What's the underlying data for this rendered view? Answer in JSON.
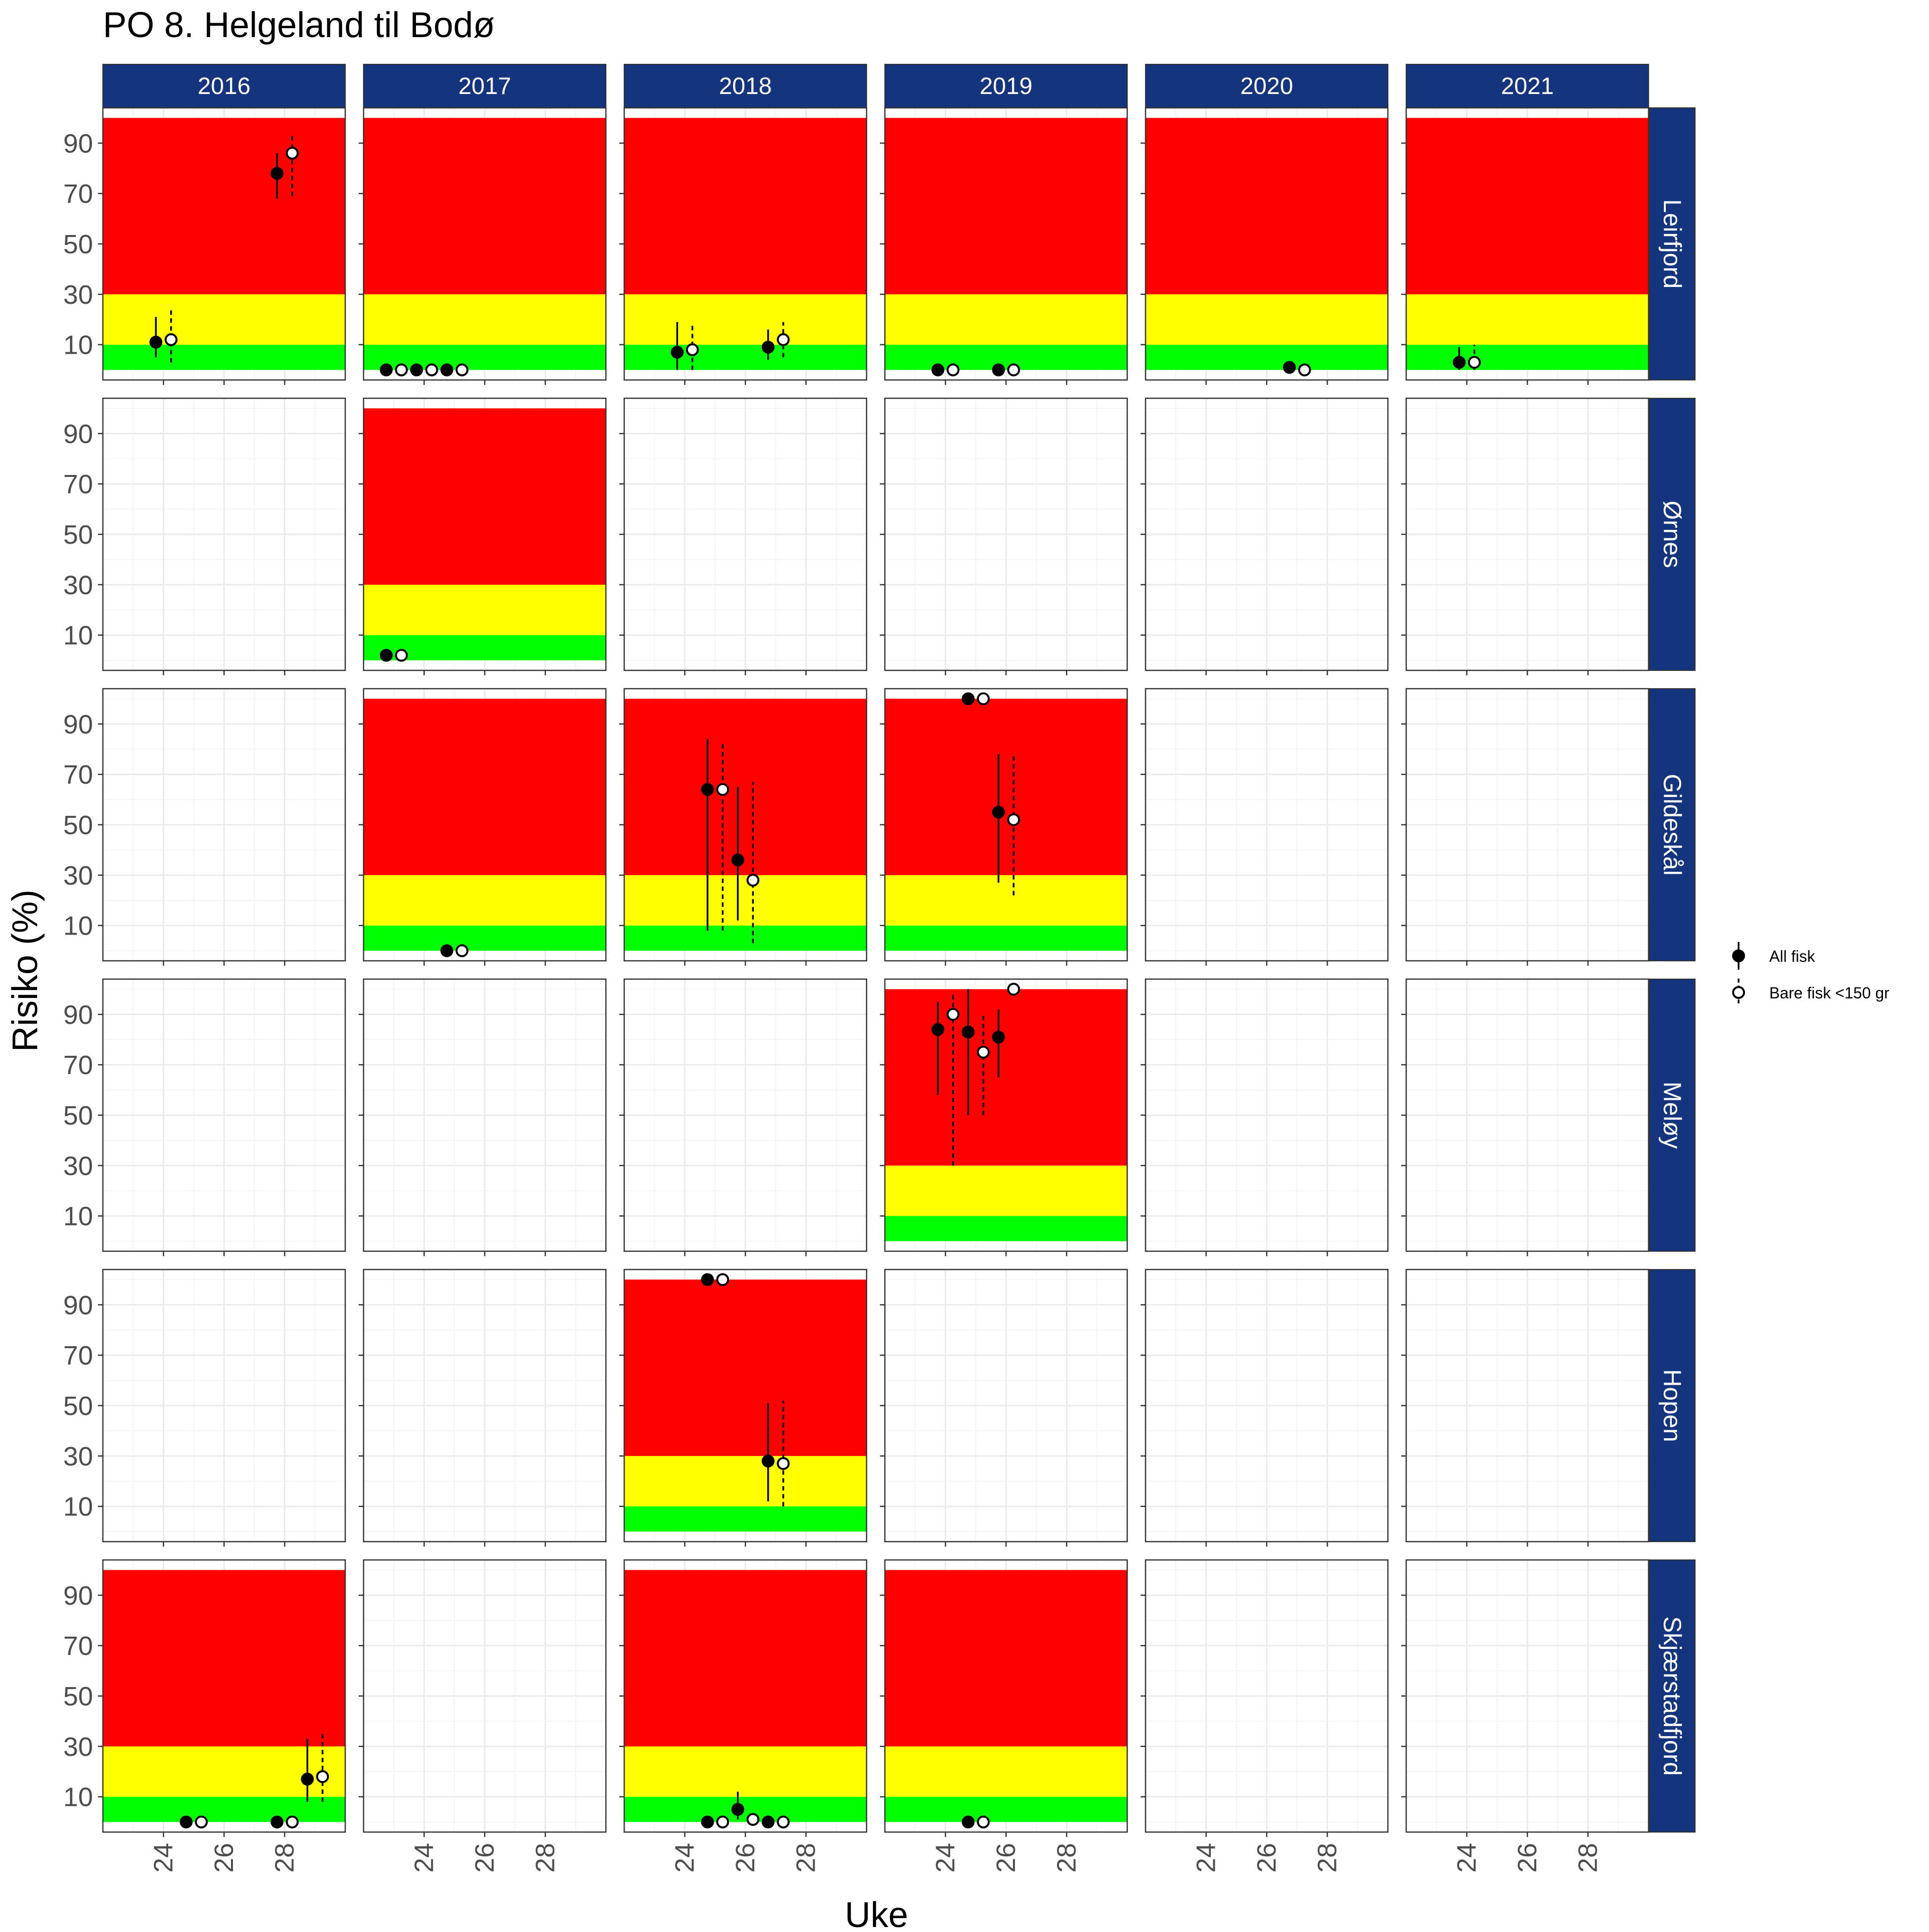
{
  "chart_data": {
    "type": "scatter",
    "title": "PO 8. Helgeland til Bodø",
    "xlabel": "Uke",
    "ylabel": "Risiko (%)",
    "years": [
      "2016",
      "2017",
      "2018",
      "2019",
      "2020",
      "2021"
    ],
    "locations": [
      "Leirfjord",
      "Ørnes",
      "Gildeskål",
      "Meløy",
      "Hopen",
      "Skjærstadfjord"
    ],
    "xlim": [
      22,
      30
    ],
    "ylim": [
      -4,
      104
    ],
    "x_ticks": [
      24,
      26,
      28
    ],
    "y_ticks": [
      10,
      30,
      50,
      70,
      90
    ],
    "risk_bands": [
      {
        "name": "low",
        "from": 0,
        "to": 10,
        "color": "#00FF00"
      },
      {
        "name": "moderate",
        "from": 10,
        "to": 30,
        "color": "#FFFF00"
      },
      {
        "name": "high",
        "from": 30,
        "to": 100,
        "color": "#FF0000"
      }
    ],
    "legend": [
      {
        "label": "All fisk",
        "marker": "filled-circle",
        "line": "solid"
      },
      {
        "label": "Bare fisk <150 gr",
        "marker": "open-circle",
        "line": "dashed"
      }
    ],
    "legend_position": "right",
    "colors": {
      "strip": "#14347D",
      "strip_text": "#FFFFFF",
      "grid": "#EBEBEB",
      "border": "#333333"
    },
    "panels": [
      {
        "year": "2016",
        "location": "Leirfjord",
        "bands": true,
        "points": [
          {
            "series": "all",
            "week": 23.75,
            "value": 11,
            "low": 5,
            "high": 21
          },
          {
            "series": "small",
            "week": 24.25,
            "value": 12,
            "low": 3,
            "high": 24
          },
          {
            "series": "all",
            "week": 27.75,
            "value": 78,
            "low": 68,
            "high": 86
          },
          {
            "series": "small",
            "week": 28.25,
            "value": 86,
            "low": 69,
            "high": 94
          }
        ]
      },
      {
        "year": "2017",
        "location": "Leirfjord",
        "bands": true,
        "points": [
          {
            "series": "all",
            "week": 22.75,
            "value": 0
          },
          {
            "series": "small",
            "week": 23.25,
            "value": 0
          },
          {
            "series": "all",
            "week": 23.75,
            "value": 0
          },
          {
            "series": "small",
            "week": 24.25,
            "value": 0
          },
          {
            "series": "all",
            "week": 24.75,
            "value": 0
          },
          {
            "series": "small",
            "week": 25.25,
            "value": 0
          }
        ]
      },
      {
        "year": "2018",
        "location": "Leirfjord",
        "bands": true,
        "points": [
          {
            "series": "all",
            "week": 23.75,
            "value": 7,
            "low": 0,
            "high": 19
          },
          {
            "series": "small",
            "week": 24.25,
            "value": 8,
            "low": 0,
            "high": 18
          },
          {
            "series": "all",
            "week": 26.75,
            "value": 9,
            "low": 4,
            "high": 16
          },
          {
            "series": "small",
            "week": 27.25,
            "value": 12,
            "low": 5,
            "high": 19
          }
        ]
      },
      {
        "year": "2019",
        "location": "Leirfjord",
        "bands": true,
        "points": [
          {
            "series": "all",
            "week": 23.75,
            "value": 0
          },
          {
            "series": "small",
            "week": 24.25,
            "value": 0
          },
          {
            "series": "all",
            "week": 25.75,
            "value": 0
          },
          {
            "series": "small",
            "week": 26.25,
            "value": 0
          }
        ]
      },
      {
        "year": "2020",
        "location": "Leirfjord",
        "bands": true,
        "points": [
          {
            "series": "all",
            "week": 26.75,
            "value": 1
          },
          {
            "series": "small",
            "week": 27.25,
            "value": 0
          }
        ]
      },
      {
        "year": "2021",
        "location": "Leirfjord",
        "bands": true,
        "points": [
          {
            "series": "all",
            "week": 23.75,
            "value": 3,
            "low": 0,
            "high": 9
          },
          {
            "series": "small",
            "week": 24.25,
            "value": 3,
            "low": 0,
            "high": 10
          }
        ]
      },
      {
        "year": "2017",
        "location": "Ørnes",
        "bands": true,
        "points": [
          {
            "series": "all",
            "week": 22.75,
            "value": 2
          },
          {
            "series": "small",
            "week": 23.25,
            "value": 2,
            "low": 0,
            "high": 4
          }
        ]
      },
      {
        "year": "2017",
        "location": "Gildeskål",
        "bands": true,
        "points": [
          {
            "series": "all",
            "week": 24.75,
            "value": 0
          },
          {
            "series": "small",
            "week": 25.25,
            "value": 0
          }
        ]
      },
      {
        "year": "2018",
        "location": "Gildeskål",
        "bands": true,
        "points": [
          {
            "series": "all",
            "week": 24.75,
            "value": 64,
            "low": 8,
            "high": 84
          },
          {
            "series": "small",
            "week": 25.25,
            "value": 64,
            "low": 8,
            "high": 83
          },
          {
            "series": "all",
            "week": 25.75,
            "value": 36,
            "low": 12,
            "high": 65
          },
          {
            "series": "small",
            "week": 26.25,
            "value": 28,
            "low": 3,
            "high": 67
          }
        ]
      },
      {
        "year": "2019",
        "location": "Gildeskål",
        "bands": true,
        "points": [
          {
            "series": "all",
            "week": 24.75,
            "value": 100
          },
          {
            "series": "small",
            "week": 25.25,
            "value": 100
          },
          {
            "series": "all",
            "week": 25.75,
            "value": 55,
            "low": 27,
            "high": 78
          },
          {
            "series": "small",
            "week": 26.25,
            "value": 52,
            "low": 22,
            "high": 78
          }
        ]
      },
      {
        "year": "2019",
        "location": "Meløy",
        "bands": true,
        "points": [
          {
            "series": "all",
            "week": 23.75,
            "value": 84,
            "low": 58,
            "high": 95
          },
          {
            "series": "small",
            "week": 24.25,
            "value": 90,
            "low": 30,
            "high": 99
          },
          {
            "series": "all",
            "week": 24.75,
            "value": 83,
            "low": 50,
            "high": 100
          },
          {
            "series": "small",
            "week": 25.25,
            "value": 75,
            "low": 50,
            "high": 90
          },
          {
            "series": "all",
            "week": 25.75,
            "value": 81,
            "low": 65,
            "high": 92
          },
          {
            "series": "small",
            "week": 26.25,
            "value": 100
          }
        ]
      },
      {
        "year": "2018",
        "location": "Hopen",
        "bands": true,
        "points": [
          {
            "series": "all",
            "week": 24.75,
            "value": 100
          },
          {
            "series": "small",
            "week": 25.25,
            "value": 100
          },
          {
            "series": "all",
            "week": 26.75,
            "value": 28,
            "low": 12,
            "high": 51
          },
          {
            "series": "small",
            "week": 27.25,
            "value": 27,
            "low": 10,
            "high": 52
          }
        ]
      },
      {
        "year": "2016",
        "location": "Skjærstadfjord",
        "bands": true,
        "points": [
          {
            "series": "all",
            "week": 24.75,
            "value": 0
          },
          {
            "series": "small",
            "week": 25.25,
            "value": 0
          },
          {
            "series": "all",
            "week": 27.75,
            "value": 0
          },
          {
            "series": "small",
            "week": 28.25,
            "value": 0
          },
          {
            "series": "all",
            "week": 28.75,
            "value": 17,
            "low": 8,
            "high": 33
          },
          {
            "series": "small",
            "week": 29.25,
            "value": 18,
            "low": 8,
            "high": 36
          }
        ]
      },
      {
        "year": "2018",
        "location": "Skjærstadfjord",
        "bands": true,
        "points": [
          {
            "series": "all",
            "week": 24.75,
            "value": 0
          },
          {
            "series": "small",
            "week": 25.25,
            "value": 0
          },
          {
            "series": "all",
            "week": 25.75,
            "value": 5,
            "low": 1,
            "high": 12
          },
          {
            "series": "small",
            "week": 26.25,
            "value": 1
          },
          {
            "series": "all",
            "week": 26.75,
            "value": 0
          },
          {
            "series": "small",
            "week": 27.25,
            "value": 0
          }
        ]
      },
      {
        "year": "2019",
        "location": "Skjærstadfjord",
        "bands": true,
        "points": [
          {
            "series": "all",
            "week": 24.75,
            "value": 0
          },
          {
            "series": "small",
            "week": 25.25,
            "value": 0
          }
        ]
      }
    ]
  }
}
